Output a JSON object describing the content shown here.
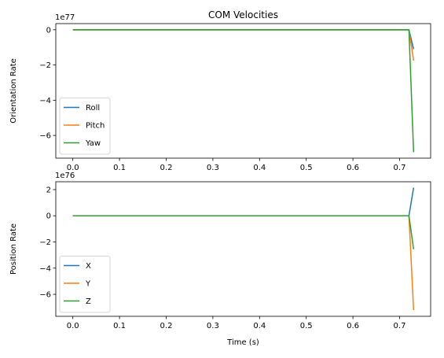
{
  "chart_data": [
    {
      "type": "line",
      "title": "COM Velocities",
      "xlabel": "",
      "ylabel": "Orientation Rate",
      "offset_text": "1e77",
      "xlim": [
        -0.0365,
        0.7665
      ],
      "ylim": [
        -7.29,
        0.35
      ],
      "xticks": [
        0.0,
        0.1,
        0.2,
        0.3,
        0.4,
        0.5,
        0.6,
        0.7
      ],
      "xtick_labels": [
        "0.0",
        "0.1",
        "0.2",
        "0.3",
        "0.4",
        "0.5",
        "0.6",
        "0.7"
      ],
      "yticks": [
        0,
        -2,
        -4,
        -6
      ],
      "ytick_labels": [
        "0",
        "−2",
        "−4",
        "−6"
      ],
      "legend_position": "lower-left",
      "grid": false,
      "x": [
        0.0,
        0.72,
        0.73
      ],
      "series": [
        {
          "name": "Roll",
          "color": "#1f77b4",
          "values": [
            0,
            0,
            -1.1
          ]
        },
        {
          "name": "Pitch",
          "color": "#ff7f0e",
          "values": [
            0,
            0,
            -1.75
          ]
        },
        {
          "name": "Yaw",
          "color": "#2ca02c",
          "values": [
            0,
            0,
            -6.95
          ]
        }
      ]
    },
    {
      "type": "line",
      "title": "",
      "xlabel": "Time (s)",
      "ylabel": "Position Rate",
      "offset_text": "1e76",
      "xlim": [
        -0.0365,
        0.7665
      ],
      "ylim": [
        -7.68,
        2.6
      ],
      "xticks": [
        0.0,
        0.1,
        0.2,
        0.3,
        0.4,
        0.5,
        0.6,
        0.7
      ],
      "xtick_labels": [
        "0.0",
        "0.1",
        "0.2",
        "0.3",
        "0.4",
        "0.5",
        "0.6",
        "0.7"
      ],
      "yticks": [
        2,
        0,
        -2,
        -4,
        -6
      ],
      "ytick_labels": [
        "2",
        "0",
        "−2",
        "−4",
        "−6"
      ],
      "legend_position": "lower-left",
      "grid": false,
      "x": [
        0.0,
        0.72,
        0.73
      ],
      "series": [
        {
          "name": "X",
          "color": "#1f77b4",
          "values": [
            0,
            0,
            2.15
          ]
        },
        {
          "name": "Y",
          "color": "#ff7f0e",
          "values": [
            0,
            0,
            -7.2
          ]
        },
        {
          "name": "Z",
          "color": "#2ca02c",
          "values": [
            0,
            0,
            -2.55
          ]
        }
      ]
    }
  ]
}
